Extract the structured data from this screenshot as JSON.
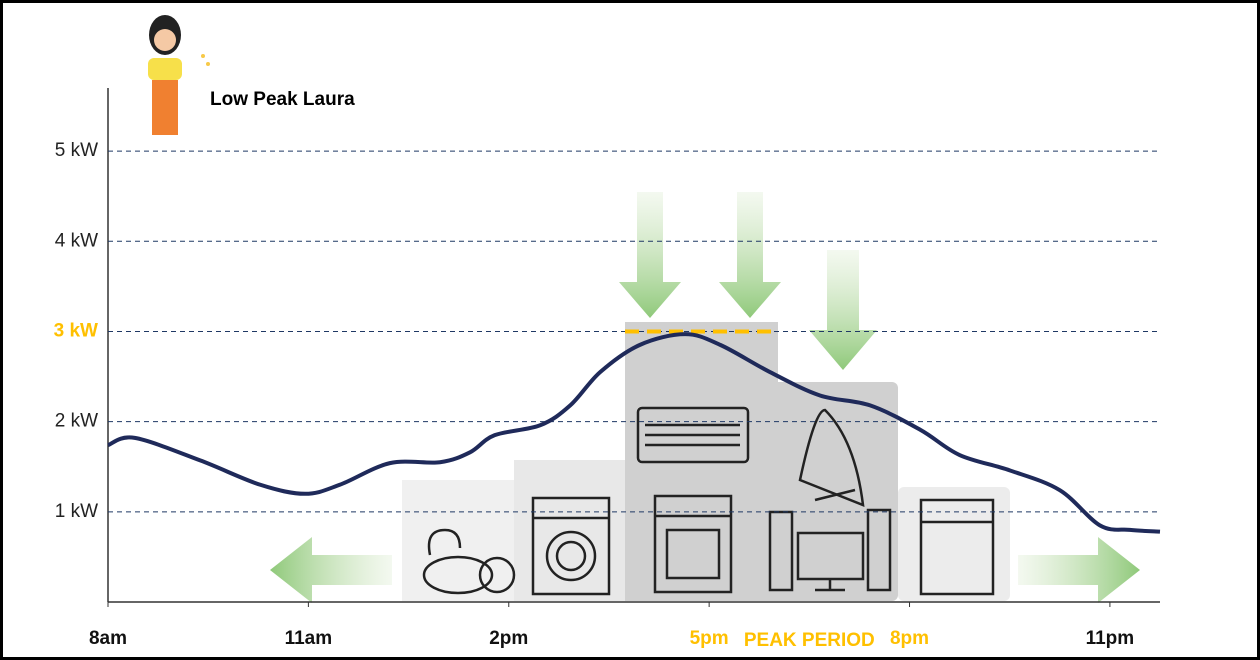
{
  "chart_data": {
    "type": "line",
    "title": "Low Peak Laura",
    "annotation": "PEAK PERIOD",
    "x": [
      8.0,
      8.4,
      9.38,
      10.28,
      10.95,
      11.47,
      12.22,
      12.97,
      13.42,
      13.79,
      14.47,
      14.92,
      15.37,
      15.96,
      16.64,
      17.17,
      17.91,
      18.66,
      19.41,
      20.16,
      20.75,
      21.5,
      22.25,
      22.85,
      23.3,
      23.75
    ],
    "series": [
      {
        "color": "#1f2a5a",
        "values": [
          1.74,
          1.82,
          1.57,
          1.3,
          1.2,
          1.3,
          1.54,
          1.55,
          1.66,
          1.85,
          1.96,
          2.18,
          2.55,
          2.85,
          2.97,
          2.85,
          2.55,
          2.29,
          2.18,
          1.91,
          1.63,
          1.46,
          1.24,
          0.85,
          0.8,
          0.78
        ]
      }
    ],
    "xlim": [
      8,
      23.75
    ],
    "xticks": [
      {
        "value": 8,
        "label": "8am"
      },
      {
        "value": 11,
        "label": "11am"
      },
      {
        "value": 14,
        "label": "2pm"
      },
      {
        "value": 17,
        "label": "5pm"
      },
      {
        "value": 20,
        "label": "8pm"
      },
      {
        "value": 23,
        "label": "11pm"
      }
    ],
    "ylim": [
      0,
      5.7
    ],
    "yticks": [
      {
        "value": 1,
        "label": "1 kW"
      },
      {
        "value": 2,
        "label": "2 kW"
      },
      {
        "value": 3,
        "label": "3 kW"
      },
      {
        "value": 4,
        "label": "4 kW"
      },
      {
        "value": 5,
        "label": "5 kW"
      }
    ],
    "grid": true,
    "peak_cap": {
      "value": 3,
      "color": "#ffc000"
    }
  }
}
